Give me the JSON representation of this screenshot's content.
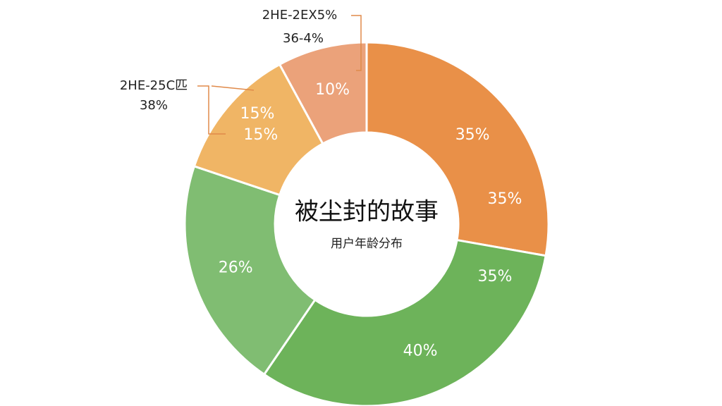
{
  "chart_data": {
    "type": "pie",
    "title": "被尘封的故事",
    "subtitle": "用户年龄分布",
    "values": [
      35,
      40,
      26,
      15,
      10
    ],
    "value_labels": [
      "35%",
      "40%",
      "26%",
      "15%",
      "10%"
    ],
    "colors": [
      "#e99048",
      "#6db35a",
      "#80bd72",
      "#f0b565",
      "#eba27a"
    ],
    "annotations": [
      "35%",
      "35%",
      "15%",
      "2HE-2EX5%",
      "36-4%",
      "2HE-25C匹",
      "38%"
    ]
  }
}
